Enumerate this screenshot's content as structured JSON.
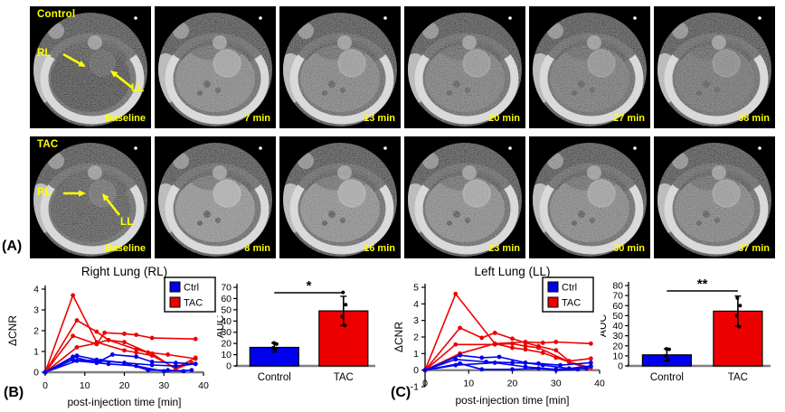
{
  "figure": {
    "panel_a_label": "(A)",
    "panel_b_label": "(B)",
    "panel_c_label": "(C)",
    "annotation_color": "#ffff00"
  },
  "panel_a": {
    "rows": [
      {
        "group": "Control",
        "annotations": {
          "right_lung": "RL",
          "left_lung": "LL"
        },
        "frames": [
          {
            "time": "Baseline",
            "enh": 0
          },
          {
            "time": "7 min",
            "enh": 0.78
          },
          {
            "time": "13 min",
            "enh": 0.7
          },
          {
            "time": "20 min",
            "enh": 0.62
          },
          {
            "time": "27 min",
            "enh": 0.56
          },
          {
            "time": "38 min",
            "enh": 0.48
          }
        ]
      },
      {
        "group": "TAC",
        "annotations": {
          "right_lung": "RL",
          "left_lung": "LL"
        },
        "frames": [
          {
            "time": "Baseline",
            "enh": 0.15
          },
          {
            "time": "8 min",
            "enh": 0.95
          },
          {
            "time": "16 min",
            "enh": 0.88
          },
          {
            "time": "23 min",
            "enh": 0.82
          },
          {
            "time": "30 min",
            "enh": 0.76
          },
          {
            "time": "37 min",
            "enh": 0.7
          }
        ]
      }
    ]
  },
  "chart_data": [
    {
      "id": "rl_cnr",
      "type": "line",
      "title": "Right Lung (RL)",
      "xlabel": "post-injection time [min]",
      "ylabel": "ΔCNR",
      "xlim": [
        0,
        40
      ],
      "ylim": [
        0,
        4
      ],
      "xticks": [
        0,
        10,
        20,
        30,
        40
      ],
      "yticks": [
        0,
        1,
        2,
        3,
        4
      ],
      "grid": false,
      "legend_position": "top-right",
      "legend": [
        {
          "label": "Ctrl",
          "color": "#0000ee"
        },
        {
          "label": "TAC",
          "color": "#ee0000"
        }
      ],
      "series": [
        {
          "group": "TAC",
          "color": "#ee0000",
          "x": [
            0,
            7,
            13,
            20,
            23,
            27,
            33,
            38
          ],
          "y": [
            0,
            3.7,
            1.45,
            1.05,
            0.95,
            0.8,
            0.2,
            0.7
          ]
        },
        {
          "group": "TAC",
          "color": "#ee0000",
          "x": [
            0,
            8,
            13,
            16,
            20,
            26,
            31,
            38
          ],
          "y": [
            0,
            2.5,
            1.95,
            1.55,
            1.45,
            0.95,
            0.85,
            0.65
          ]
        },
        {
          "group": "TAC",
          "color": "#ee0000",
          "x": [
            0,
            7,
            13,
            15,
            20,
            23,
            27,
            38
          ],
          "y": [
            0,
            1.75,
            1.35,
            1.9,
            1.85,
            1.8,
            1.65,
            1.6
          ]
        },
        {
          "group": "TAC",
          "color": "#ee0000",
          "x": [
            0,
            8,
            13,
            16,
            23,
            27,
            33,
            37
          ],
          "y": [
            0,
            1.2,
            1.4,
            1.55,
            1.1,
            0.9,
            0.15,
            0.45
          ]
        },
        {
          "group": "Ctrl",
          "color": "#0000ee",
          "x": [
            0,
            7,
            13,
            17,
            23,
            27,
            33,
            38
          ],
          "y": [
            0,
            0.75,
            0.45,
            0.85,
            0.75,
            0.5,
            0.45,
            0.4
          ]
        },
        {
          "group": "Ctrl",
          "color": "#0000ee",
          "x": [
            0,
            8,
            13,
            20,
            26,
            31,
            35
          ],
          "y": [
            0,
            0.8,
            0.6,
            0.45,
            0.1,
            0.1,
            0.05
          ]
        },
        {
          "group": "Ctrl",
          "color": "#0000ee",
          "x": [
            0,
            7,
            14,
            20,
            27,
            33,
            38
          ],
          "y": [
            0,
            0.6,
            0.55,
            0.45,
            0.35,
            0.3,
            0.4
          ]
        },
        {
          "group": "Ctrl",
          "color": "#0000ee",
          "x": [
            0,
            8,
            16,
            23,
            30,
            37
          ],
          "y": [
            0,
            0.55,
            0.4,
            0.3,
            0.05,
            0.1
          ]
        }
      ]
    },
    {
      "id": "rl_auc",
      "type": "bar",
      "ylabel": "AUC",
      "categories": [
        "Control",
        "TAC"
      ],
      "values": [
        16.5,
        49
      ],
      "errors": [
        4,
        13
      ],
      "points": [
        [
          15,
          16,
          19.5,
          20.5
        ],
        [
          36,
          44,
          54.5,
          65.5
        ]
      ],
      "colors": [
        "#0000ee",
        "#ee0000"
      ],
      "ylim": [
        0,
        70
      ],
      "yticks": [
        0,
        10,
        20,
        30,
        40,
        50,
        60,
        70
      ],
      "significance": "*"
    },
    {
      "id": "ll_cnr",
      "type": "line",
      "title": "Left Lung (LL)",
      "xlabel": "post-injection time [min]",
      "ylabel": "ΔCNR",
      "xlim": [
        0,
        40
      ],
      "ylim": [
        -1,
        5
      ],
      "xticks": [
        0,
        10,
        20,
        30,
        40
      ],
      "yticks": [
        -1,
        0,
        1,
        2,
        3,
        4,
        5
      ],
      "grid": false,
      "legend_position": "top-right",
      "legend": [
        {
          "label": "Ctrl",
          "color": "#0000ee"
        },
        {
          "label": "TAC",
          "color": "#ee0000"
        }
      ],
      "series": [
        {
          "group": "TAC",
          "color": "#ee0000",
          "x": [
            0,
            7,
            16,
            20,
            23,
            27,
            30,
            33,
            38
          ],
          "y": [
            0,
            4.6,
            1.6,
            1.35,
            1.25,
            1.05,
            0.75,
            0.5,
            0.15
          ]
        },
        {
          "group": "TAC",
          "color": "#ee0000",
          "x": [
            0,
            8,
            13,
            16,
            20,
            23,
            26,
            30,
            33,
            38
          ],
          "y": [
            0,
            2.55,
            1.95,
            2.25,
            1.9,
            1.65,
            1.45,
            1.2,
            0.55,
            0.7
          ]
        },
        {
          "group": "TAC",
          "color": "#ee0000",
          "x": [
            0,
            7,
            16,
            20,
            23,
            26,
            33,
            37
          ],
          "y": [
            0,
            1.55,
            1.55,
            1.6,
            1.45,
            1.35,
            0.5,
            0.1
          ]
        },
        {
          "group": "TAC",
          "color": "#ee0000",
          "x": [
            0,
            8,
            16,
            23,
            27,
            30,
            38
          ],
          "y": [
            0,
            1.0,
            1.6,
            1.7,
            1.65,
            1.7,
            1.6
          ]
        },
        {
          "group": "Ctrl",
          "color": "#0000ee",
          "x": [
            0,
            8,
            13,
            17,
            23,
            27,
            33,
            38
          ],
          "y": [
            0,
            0.9,
            0.75,
            0.8,
            0.45,
            0.3,
            0.1,
            0.25
          ]
        },
        {
          "group": "Ctrl",
          "color": "#0000ee",
          "x": [
            0,
            7,
            14,
            20,
            26,
            31,
            38
          ],
          "y": [
            0,
            0.65,
            0.5,
            0.45,
            0.4,
            0.3,
            0.45
          ]
        },
        {
          "group": "Ctrl",
          "color": "#0000ee",
          "x": [
            0,
            8,
            13,
            20,
            26,
            30,
            35
          ],
          "y": [
            0,
            0.4,
            0.05,
            0.05,
            0.1,
            0,
            0.05
          ]
        },
        {
          "group": "Ctrl",
          "color": "#0000ee",
          "x": [
            0,
            7,
            16,
            23,
            30,
            37
          ],
          "y": [
            0,
            0.3,
            0.45,
            0.2,
            0.05,
            0.1
          ]
        }
      ]
    },
    {
      "id": "ll_auc",
      "type": "bar",
      "ylabel": "AUC",
      "categories": [
        "Control",
        "TAC"
      ],
      "values": [
        11,
        54.5
      ],
      "errors": [
        6,
        15
      ],
      "points": [
        [
          6,
          10,
          16.5,
          17
        ],
        [
          39,
          50,
          60,
          67.5
        ]
      ],
      "colors": [
        "#0000ee",
        "#ee0000"
      ],
      "ylim": [
        0,
        80
      ],
      "yticks": [
        0,
        10,
        20,
        30,
        40,
        50,
        60,
        70,
        80
      ],
      "significance": "**"
    }
  ]
}
